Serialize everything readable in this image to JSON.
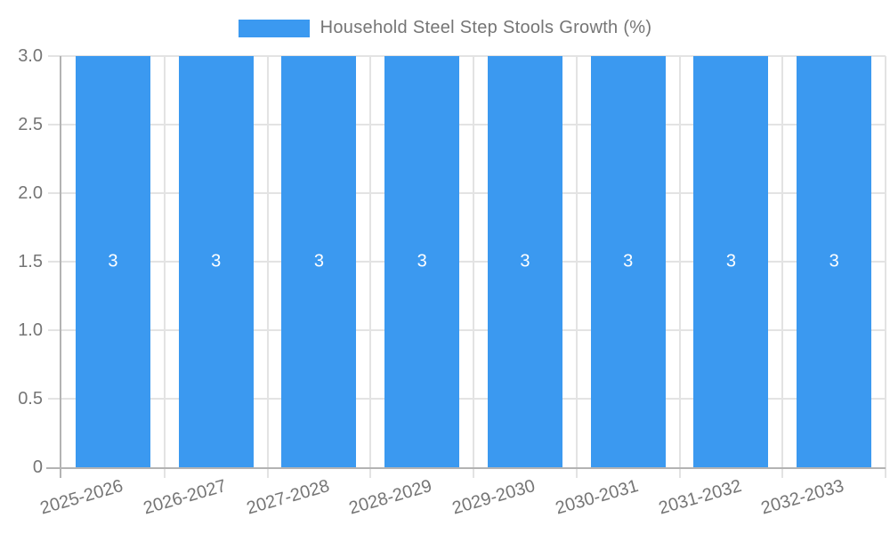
{
  "chart_data": {
    "type": "bar",
    "title": "Household Steel Step Stools Growth (%)",
    "categories": [
      "2025-2026",
      "2026-2027",
      "2027-2028",
      "2028-2029",
      "2029-2030",
      "2030-2031",
      "2031-2032",
      "2032-2033"
    ],
    "values": [
      3,
      3,
      3,
      3,
      3,
      3,
      3,
      3
    ],
    "value_labels": [
      "3",
      "3",
      "3",
      "3",
      "3",
      "3",
      "3",
      "3"
    ],
    "xlabel": "",
    "ylabel": "",
    "ylim": [
      0,
      3
    ],
    "y_ticks": [
      {
        "value": 0,
        "label": "0"
      },
      {
        "value": 0.5,
        "label": "0.5"
      },
      {
        "value": 1,
        "label": "1.0"
      },
      {
        "value": 1.5,
        "label": "1.5"
      },
      {
        "value": 2,
        "label": "2.0"
      },
      {
        "value": 2.5,
        "label": "2.5"
      },
      {
        "value": 3,
        "label": "3.0"
      }
    ],
    "grid": true,
    "legend_position": "top",
    "colors": {
      "bar": "#3B99F0",
      "axis_text": "#757575",
      "gridline": "#e3e3e3",
      "axis_line": "#b3b3b3",
      "value_label": "#ffffff"
    }
  }
}
